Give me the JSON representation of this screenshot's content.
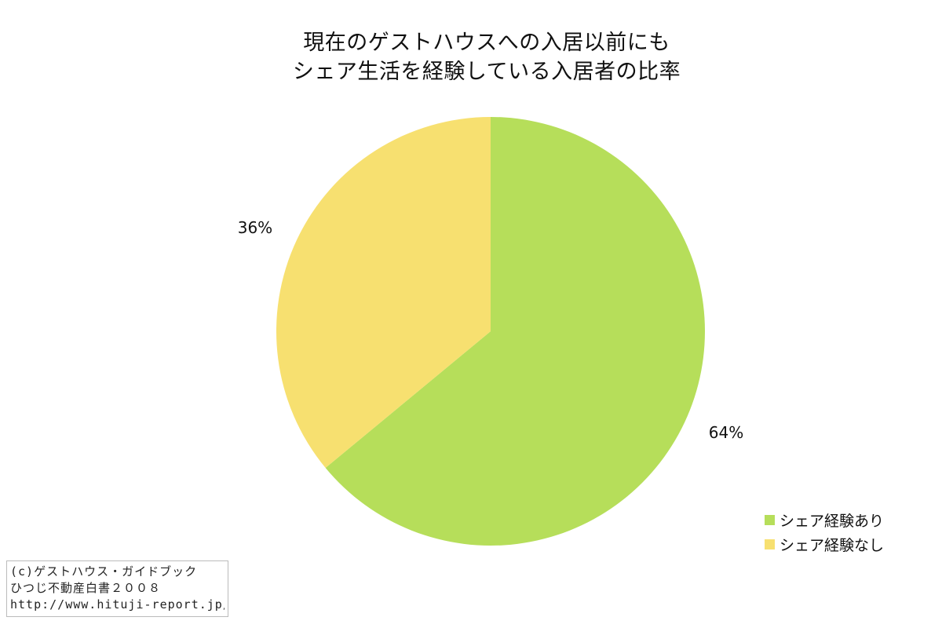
{
  "chart_data": {
    "type": "pie",
    "title_lines": [
      "現在のゲストハウスへの入居以前にも",
      "シェア生活を経験している入居者の比率"
    ],
    "slices": [
      {
        "name": "シェア経験あり",
        "value": 64,
        "label": "64%",
        "color": "#b6de5a"
      },
      {
        "name": "シェア経験なし",
        "value": 36,
        "label": "36%",
        "color": "#f7e070"
      }
    ],
    "start_angle_deg": 0,
    "direction": "clockwise",
    "legend_position": "bottom-right"
  },
  "legend": {
    "items": [
      "シェア経験あり",
      "シェア経験なし"
    ]
  },
  "credit": {
    "line1": "(c)ゲストハウス・ガイドブック",
    "line2": "ひつじ不動産白書２００８",
    "line3": "http://www.hituji-report.jp/"
  }
}
